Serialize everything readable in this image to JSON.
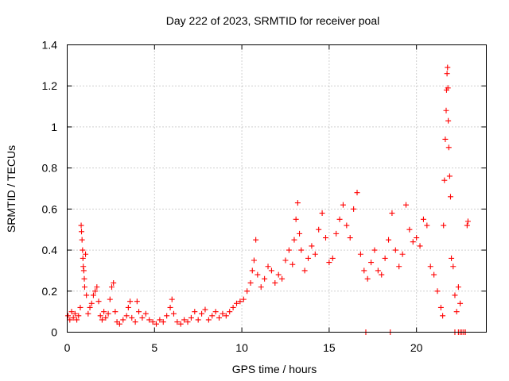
{
  "chart_data": {
    "type": "scatter",
    "title": "Day 222 of 2023, SRMTID for receiver poal",
    "xlabel": "GPS time / hours",
    "ylabel": "SRMTID / TECUs",
    "xlim": [
      0,
      24
    ],
    "ylim": [
      0,
      1.4
    ],
    "x_ticks": [
      0,
      5,
      10,
      15,
      20
    ],
    "x_tick_labels": [
      "0",
      "5",
      "10",
      "15",
      "20"
    ],
    "y_ticks": [
      0,
      0.2,
      0.4,
      0.6,
      0.8,
      1.0,
      1.2,
      1.4
    ],
    "y_tick_labels": [
      "0",
      "0.2",
      "0.4",
      "0.6",
      "0.8",
      "1",
      "1.2",
      "1.4"
    ],
    "grid": true,
    "marker": "+",
    "series": [
      {
        "name": "SRMTID",
        "color": "#ff0000",
        "points": [
          [
            0.05,
            0.08
          ],
          [
            0.15,
            0.06
          ],
          [
            0.25,
            0.1
          ],
          [
            0.35,
            0.07
          ],
          [
            0.45,
            0.09
          ],
          [
            0.55,
            0.06
          ],
          [
            0.65,
            0.08
          ],
          [
            0.75,
            0.12
          ],
          [
            0.8,
            0.52
          ],
          [
            0.82,
            0.49
          ],
          [
            0.85,
            0.45
          ],
          [
            0.88,
            0.4
          ],
          [
            0.9,
            0.36
          ],
          [
            0.92,
            0.32
          ],
          [
            0.95,
            0.3
          ],
          [
            0.98,
            0.26
          ],
          [
            1.0,
            0.22
          ],
          [
            1.05,
            0.38
          ],
          [
            1.1,
            0.18
          ],
          [
            1.2,
            0.09
          ],
          [
            1.3,
            0.12
          ],
          [
            1.4,
            0.14
          ],
          [
            1.5,
            0.18
          ],
          [
            1.6,
            0.2
          ],
          [
            1.7,
            0.22
          ],
          [
            1.8,
            0.15
          ],
          [
            1.9,
            0.08
          ],
          [
            2.0,
            0.06
          ],
          [
            2.1,
            0.1
          ],
          [
            2.2,
            0.07
          ],
          [
            2.35,
            0.09
          ],
          [
            2.45,
            0.16
          ],
          [
            2.55,
            0.22
          ],
          [
            2.65,
            0.24
          ],
          [
            2.75,
            0.1
          ],
          [
            2.85,
            0.05
          ],
          [
            3.0,
            0.04
          ],
          [
            3.2,
            0.06
          ],
          [
            3.4,
            0.08
          ],
          [
            3.5,
            0.12
          ],
          [
            3.6,
            0.15
          ],
          [
            3.7,
            0.07
          ],
          [
            3.9,
            0.05
          ],
          [
            4.0,
            0.15
          ],
          [
            4.1,
            0.1
          ],
          [
            4.3,
            0.07
          ],
          [
            4.5,
            0.09
          ],
          [
            4.7,
            0.06
          ],
          [
            4.9,
            0.05
          ],
          [
            5.1,
            0.04
          ],
          [
            5.3,
            0.06
          ],
          [
            5.5,
            0.05
          ],
          [
            5.7,
            0.08
          ],
          [
            5.9,
            0.12
          ],
          [
            6.0,
            0.16
          ],
          [
            6.1,
            0.09
          ],
          [
            6.3,
            0.05
          ],
          [
            6.5,
            0.04
          ],
          [
            6.7,
            0.06
          ],
          [
            6.9,
            0.05
          ],
          [
            7.1,
            0.07
          ],
          [
            7.3,
            0.1
          ],
          [
            7.5,
            0.06
          ],
          [
            7.7,
            0.09
          ],
          [
            7.9,
            0.11
          ],
          [
            8.1,
            0.06
          ],
          [
            8.3,
            0.08
          ],
          [
            8.5,
            0.1
          ],
          [
            8.7,
            0.07
          ],
          [
            8.9,
            0.09
          ],
          [
            9.1,
            0.08
          ],
          [
            9.3,
            0.1
          ],
          [
            9.5,
            0.12
          ],
          [
            9.7,
            0.14
          ],
          [
            9.9,
            0.15
          ],
          [
            10.1,
            0.16
          ],
          [
            10.3,
            0.2
          ],
          [
            10.5,
            0.24
          ],
          [
            10.6,
            0.3
          ],
          [
            10.7,
            0.35
          ],
          [
            10.8,
            0.45
          ],
          [
            10.9,
            0.28
          ],
          [
            11.1,
            0.22
          ],
          [
            11.3,
            0.26
          ],
          [
            11.5,
            0.32
          ],
          [
            11.7,
            0.3
          ],
          [
            11.9,
            0.24
          ],
          [
            12.1,
            0.28
          ],
          [
            12.3,
            0.26
          ],
          [
            12.5,
            0.35
          ],
          [
            12.7,
            0.4
          ],
          [
            12.9,
            0.33
          ],
          [
            13.0,
            0.45
          ],
          [
            13.1,
            0.55
          ],
          [
            13.2,
            0.63
          ],
          [
            13.3,
            0.48
          ],
          [
            13.4,
            0.4
          ],
          [
            13.6,
            0.3
          ],
          [
            13.8,
            0.36
          ],
          [
            14.0,
            0.42
          ],
          [
            14.2,
            0.38
          ],
          [
            14.4,
            0.5
          ],
          [
            14.6,
            0.58
          ],
          [
            14.8,
            0.46
          ],
          [
            15.0,
            0.34
          ],
          [
            15.2,
            0.36
          ],
          [
            15.4,
            0.48
          ],
          [
            15.6,
            0.55
          ],
          [
            15.8,
            0.62
          ],
          [
            16.0,
            0.52
          ],
          [
            16.2,
            0.46
          ],
          [
            16.4,
            0.6
          ],
          [
            16.6,
            0.68
          ],
          [
            16.8,
            0.38
          ],
          [
            17.0,
            0.3
          ],
          [
            17.2,
            0.26
          ],
          [
            17.4,
            0.34
          ],
          [
            17.6,
            0.4
          ],
          [
            17.8,
            0.3
          ],
          [
            18.0,
            0.28
          ],
          [
            18.2,
            0.36
          ],
          [
            18.4,
            0.45
          ],
          [
            18.6,
            0.58
          ],
          [
            18.8,
            0.4
          ],
          [
            19.0,
            0.32
          ],
          [
            19.2,
            0.38
          ],
          [
            19.4,
            0.62
          ],
          [
            19.6,
            0.5
          ],
          [
            19.8,
            0.44
          ],
          [
            20.0,
            0.46
          ],
          [
            20.2,
            0.42
          ],
          [
            20.4,
            0.55
          ],
          [
            20.6,
            0.52
          ],
          [
            20.8,
            0.32
          ],
          [
            21.0,
            0.28
          ],
          [
            21.2,
            0.2
          ],
          [
            21.4,
            0.12
          ],
          [
            21.5,
            0.08
          ],
          [
            21.55,
            0.52
          ],
          [
            21.6,
            0.74
          ],
          [
            21.65,
            0.94
          ],
          [
            21.7,
            1.08
          ],
          [
            21.72,
            1.18
          ],
          [
            21.75,
            1.26
          ],
          [
            21.78,
            1.29
          ],
          [
            21.8,
            1.19
          ],
          [
            21.82,
            1.03
          ],
          [
            21.85,
            0.9
          ],
          [
            21.9,
            0.76
          ],
          [
            21.95,
            0.66
          ],
          [
            22.0,
            0.36
          ],
          [
            22.1,
            0.32
          ],
          [
            22.2,
            0.18
          ],
          [
            22.3,
            0.1
          ],
          [
            22.4,
            0.22
          ],
          [
            22.5,
            0.14
          ],
          [
            22.9,
            0.52
          ],
          [
            22.95,
            0.54
          ],
          [
            17.1,
            0.0
          ],
          [
            18.5,
            0.0
          ],
          [
            22.2,
            0.0
          ],
          [
            22.4,
            0.0
          ],
          [
            22.5,
            0.0
          ],
          [
            22.6,
            0.0
          ],
          [
            22.7,
            0.0
          ],
          [
            22.8,
            0.0
          ]
        ]
      }
    ]
  }
}
